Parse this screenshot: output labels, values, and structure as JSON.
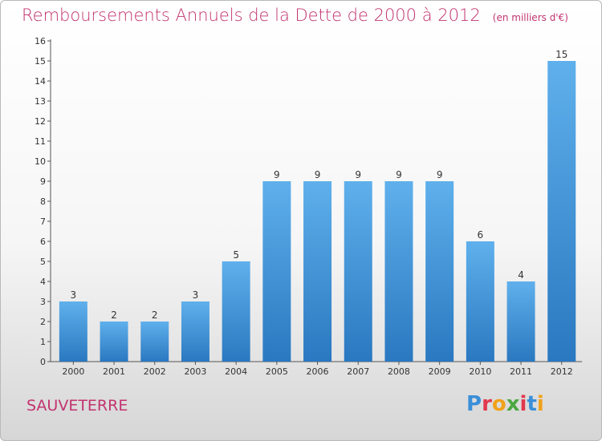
{
  "title": "Remboursements Annuels de la Dette de 2000 à 2012",
  "subtitle": "(en milliers d'€)",
  "commune": "SAUVETERRE",
  "logo": {
    "text": "Proxiti",
    "letter_colors": [
      "#3a8fd8",
      "#e2384d",
      "#f0a21a",
      "#4aa840",
      "#e2384d",
      "#3a8fd8",
      "#f0a21a"
    ]
  },
  "colors": {
    "title": "#c2336f",
    "bar_top": "#5fb0ec",
    "bar_bottom": "#2a78c0"
  },
  "chart_data": {
    "type": "bar",
    "categories": [
      "2000",
      "2001",
      "2002",
      "2003",
      "2004",
      "2005",
      "2006",
      "2007",
      "2008",
      "2009",
      "2010",
      "2011",
      "2012"
    ],
    "values": [
      3,
      2,
      2,
      3,
      5,
      9,
      9,
      9,
      9,
      9,
      6,
      4,
      15
    ],
    "y_ticks": [
      0,
      1,
      2,
      3,
      4,
      5,
      6,
      7,
      8,
      9,
      10,
      11,
      12,
      13,
      14,
      15,
      16
    ],
    "ylim": [
      0,
      16
    ],
    "grid": false,
    "data_labels": true
  }
}
